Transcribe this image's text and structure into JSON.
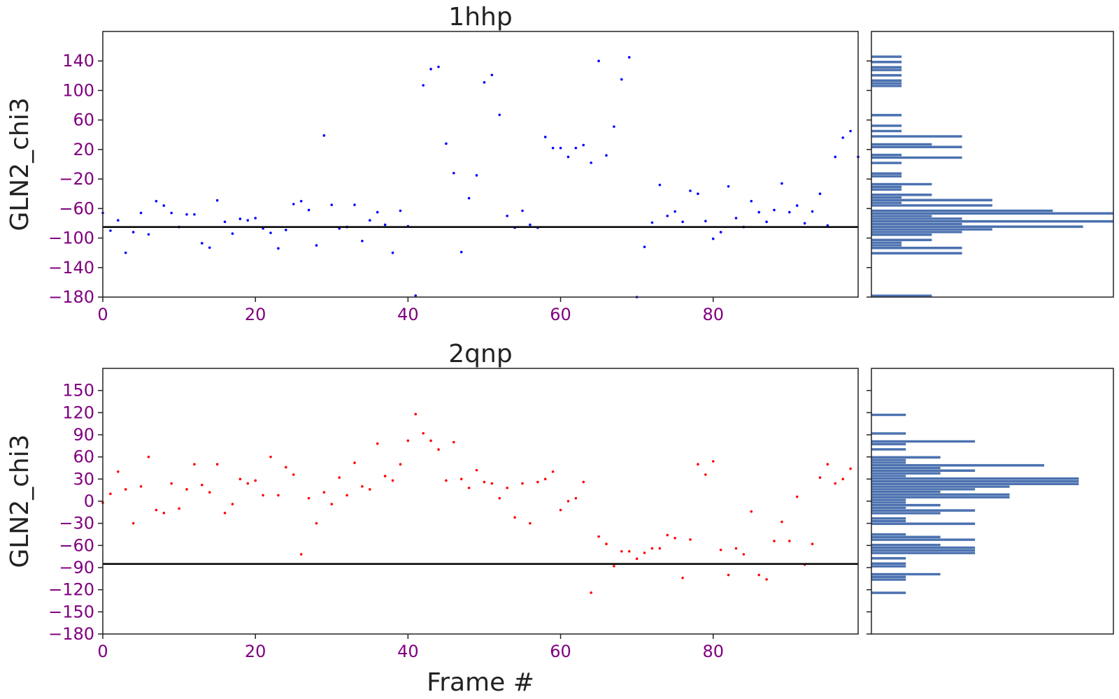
{
  "chart_data": [
    {
      "type": "scatter",
      "title": "1hhp",
      "xlabel": "",
      "ylabel": "GLN2_chi3",
      "xlim": [
        0,
        99
      ],
      "ylim": [
        -180,
        180
      ],
      "xticks": [
        0,
        20,
        40,
        60,
        80
      ],
      "yticks": [
        -180,
        -140,
        -100,
        -60,
        -20,
        20,
        60,
        100,
        140
      ],
      "marker_color": "#0000ff",
      "hline": -85,
      "line_color": "#000000",
      "hist_color": "#4c72b0",
      "series": [
        {
          "x": [
            0,
            1,
            2,
            3,
            4,
            5,
            6,
            7,
            8,
            9,
            10,
            11,
            12,
            13,
            14,
            15,
            16,
            17,
            18,
            19,
            20,
            21,
            22,
            23,
            24,
            25,
            26,
            27,
            28,
            29,
            30,
            31,
            32,
            33,
            34,
            35,
            36,
            37,
            38,
            39,
            40,
            41,
            42,
            43,
            44,
            45,
            46,
            47,
            48,
            49,
            50,
            51,
            52,
            53,
            54,
            55,
            56,
            57,
            58,
            59,
            60,
            61,
            62,
            63,
            64,
            65,
            66,
            67,
            68,
            69,
            70,
            71,
            72,
            73,
            74,
            75,
            76,
            77,
            78,
            79,
            80,
            81,
            82,
            83,
            84,
            85,
            86,
            87,
            88,
            89,
            90,
            91,
            92,
            93,
            94,
            95,
            96,
            97,
            98,
            99
          ],
          "y": [
            -66,
            -90,
            -76,
            -120,
            -92,
            -66,
            -95,
            -50,
            -56,
            -66,
            -85,
            -68,
            -68,
            -107,
            -113,
            -49,
            -78,
            -94,
            -74,
            -76,
            -73,
            -87,
            -93,
            -114,
            -89,
            -54,
            -50,
            -62,
            -110,
            39,
            -55,
            -87,
            -85,
            -55,
            -104,
            -76,
            -65,
            -82,
            -120,
            -63,
            -84,
            -178,
            107,
            129,
            132,
            28,
            -12,
            -119,
            -46,
            -15,
            111,
            121,
            67,
            -70,
            -86,
            -63,
            -82,
            -86,
            37,
            22,
            22,
            10,
            22,
            26,
            2,
            140,
            12,
            51,
            115,
            145,
            -180,
            -112,
            -79,
            -28,
            -70,
            -64,
            -78,
            -36,
            -40,
            -77,
            -101,
            -92,
            -30,
            -73,
            -85,
            -50,
            -65,
            -78,
            -62,
            -26,
            -65,
            -56,
            -80,
            -64,
            -40,
            -83,
            10,
            36,
            45,
            10
          ]
        }
      ]
    },
    {
      "type": "scatter",
      "title": "2qnp",
      "xlabel": "Frame #",
      "ylabel": "GLN2_chi3",
      "xlim": [
        0,
        99
      ],
      "ylim": [
        -180,
        180
      ],
      "xticks": [
        0,
        20,
        40,
        60,
        80
      ],
      "yticks": [
        -180,
        -150,
        -120,
        -90,
        -60,
        -30,
        0,
        30,
        60,
        90,
        120,
        150
      ],
      "marker_color": "#ff0000",
      "hline": -85,
      "line_color": "#000000",
      "hist_color": "#4c72b0",
      "series": [
        {
          "x": [
            0,
            1,
            2,
            3,
            4,
            5,
            6,
            7,
            8,
            9,
            10,
            11,
            12,
            13,
            14,
            15,
            16,
            17,
            18,
            19,
            20,
            21,
            22,
            23,
            24,
            25,
            26,
            27,
            28,
            29,
            30,
            31,
            32,
            33,
            34,
            35,
            36,
            37,
            38,
            39,
            40,
            41,
            42,
            43,
            44,
            45,
            46,
            47,
            48,
            49,
            50,
            51,
            52,
            53,
            54,
            55,
            56,
            57,
            58,
            59,
            60,
            61,
            62,
            63,
            64,
            65,
            66,
            67,
            68,
            69,
            70,
            71,
            72,
            73,
            74,
            75,
            76,
            77,
            78,
            79,
            80,
            81,
            82,
            83,
            84,
            85,
            86,
            87,
            88,
            89,
            90,
            91,
            92,
            93,
            94,
            95,
            96,
            97,
            98
          ],
          "y": [
            -2,
            10,
            40,
            16,
            -30,
            20,
            60,
            -12,
            -16,
            24,
            -10,
            16,
            50,
            22,
            12,
            50,
            -16,
            -4,
            30,
            24,
            28,
            8,
            60,
            8,
            46,
            36,
            -72,
            4,
            -30,
            12,
            -4,
            32,
            8,
            52,
            20,
            16,
            78,
            34,
            28,
            50,
            82,
            118,
            92,
            82,
            70,
            28,
            80,
            30,
            18,
            42,
            26,
            24,
            4,
            18,
            -22,
            24,
            -30,
            26,
            30,
            40,
            -12,
            0,
            4,
            26,
            -124,
            -48,
            -58,
            -88,
            -68,
            -68,
            -78,
            -70,
            -64,
            -64,
            -46,
            -50,
            -104,
            -52,
            50,
            36,
            54,
            -66,
            -100,
            -64,
            -72,
            -14,
            -100,
            -106,
            -54,
            -28,
            -54,
            6,
            -86,
            -58,
            32,
            50,
            24,
            30,
            44
          ]
        }
      ]
    }
  ]
}
